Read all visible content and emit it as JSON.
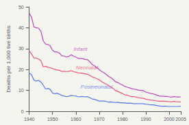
{
  "chart_data": {
    "type": "line",
    "ylabel": "Deaths per 1,000 live births",
    "xlim": [
      1940,
      2005
    ],
    "ylim": [
      0,
      50
    ],
    "xticks": [
      1940,
      1950,
      1960,
      1970,
      1980,
      1990,
      2000,
      2005
    ],
    "yticks": [
      0,
      10,
      20,
      30,
      40,
      50
    ],
    "grid": false,
    "x": [
      1940,
      1941,
      1942,
      1943,
      1944,
      1945,
      1946,
      1947,
      1948,
      1949,
      1950,
      1951,
      1952,
      1953,
      1954,
      1955,
      1956,
      1957,
      1958,
      1959,
      1960,
      1961,
      1962,
      1963,
      1964,
      1965,
      1966,
      1967,
      1968,
      1969,
      1970,
      1971,
      1972,
      1973,
      1974,
      1975,
      1976,
      1977,
      1978,
      1979,
      1980,
      1981,
      1982,
      1983,
      1984,
      1985,
      1986,
      1987,
      1988,
      1989,
      1990,
      1991,
      1992,
      1993,
      1994,
      1995,
      1996,
      1997,
      1998,
      1999,
      2000,
      2001,
      2002,
      2003,
      2004,
      2005
    ],
    "series": [
      {
        "color": "#bb44bb",
        "values": [
          47.0,
          45.0,
          40.4,
          40.0,
          39.8,
          38.3,
          33.8,
          32.2,
          32.0,
          31.3,
          29.2,
          28.4,
          28.4,
          27.8,
          26.6,
          26.4,
          26.0,
          26.3,
          27.1,
          26.4,
          26.0,
          25.3,
          25.3,
          25.2,
          24.8,
          24.7,
          23.7,
          22.4,
          21.8,
          20.9,
          20.0,
          19.1,
          18.5,
          17.7,
          16.7,
          16.1,
          15.2,
          14.1,
          13.8,
          13.1,
          12.6,
          11.9,
          11.5,
          11.2,
          10.8,
          10.6,
          10.4,
          10.1,
          10.0,
          9.8,
          9.2,
          8.9,
          8.5,
          8.4,
          8.0,
          7.6,
          7.3,
          7.2,
          7.2,
          7.1,
          6.9,
          6.8,
          7.0,
          6.9,
          6.8,
          6.9
        ]
      },
      {
        "color": "#ee5577",
        "values": [
          28.8,
          27.5,
          25.5,
          25.5,
          25.0,
          24.3,
          21.3,
          21.5,
          21.1,
          20.8,
          20.5,
          20.0,
          19.8,
          19.6,
          19.1,
          19.1,
          19.0,
          19.1,
          19.5,
          19.0,
          18.7,
          18.4,
          18.3,
          18.2,
          17.9,
          17.7,
          17.2,
          16.5,
          16.1,
          15.6,
          15.1,
          14.2,
          13.6,
          13.0,
          12.3,
          11.6,
          10.9,
          9.9,
          9.5,
          9.0,
          8.5,
          7.9,
          7.7,
          7.3,
          7.0,
          7.0,
          6.7,
          6.5,
          6.3,
          6.2,
          5.8,
          5.6,
          5.4,
          5.3,
          5.1,
          4.9,
          4.8,
          4.8,
          4.8,
          4.7,
          4.6,
          4.5,
          4.7,
          4.6,
          4.5,
          4.5
        ]
      },
      {
        "color": "#5577ee",
        "values": [
          18.3,
          17.5,
          14.9,
          14.5,
          14.8,
          14.0,
          12.5,
          10.7,
          10.9,
          10.5,
          8.7,
          8.4,
          8.6,
          8.2,
          7.5,
          7.3,
          7.0,
          7.2,
          7.6,
          7.4,
          7.3,
          6.9,
          7.0,
          7.0,
          6.9,
          7.0,
          6.5,
          5.9,
          5.7,
          5.3,
          4.9,
          4.9,
          4.9,
          4.7,
          4.4,
          4.5,
          4.3,
          4.2,
          4.3,
          4.1,
          4.1,
          4.0,
          3.8,
          3.9,
          3.8,
          3.6,
          3.7,
          3.6,
          3.7,
          3.6,
          3.4,
          3.3,
          3.1,
          3.1,
          2.9,
          2.7,
          2.5,
          2.4,
          2.4,
          2.4,
          2.3,
          2.3,
          2.3,
          2.3,
          2.3,
          2.4
        ]
      }
    ],
    "annotations": [
      {
        "text": "Infant",
        "x": 1959,
        "y": 28.5,
        "color": "#bb44bb"
      },
      {
        "text": "Neonatal",
        "x": 1960,
        "y": 19.5,
        "color": "#ee5577"
      },
      {
        "text": "Postneonatal",
        "x": 1962,
        "y": 10.5,
        "color": "#5577ee"
      }
    ]
  }
}
